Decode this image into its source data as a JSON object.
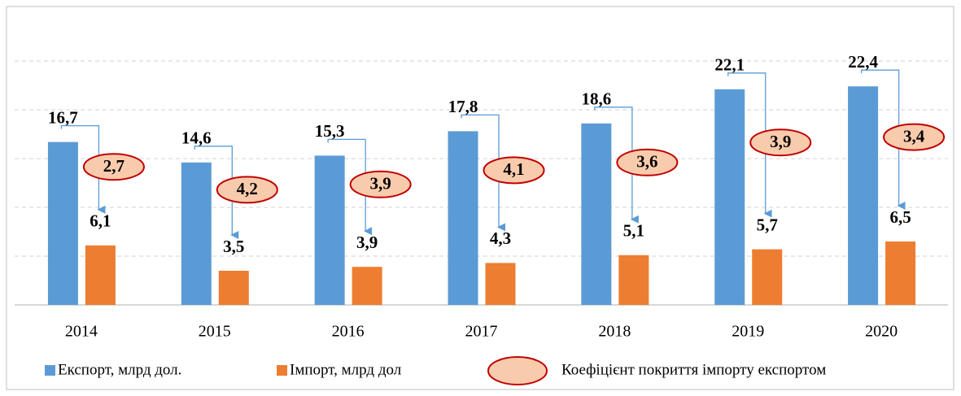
{
  "chart_data": {
    "type": "bar",
    "categories": [
      "2014",
      "2015",
      "2016",
      "2017",
      "2018",
      "2019",
      "2020"
    ],
    "series": [
      {
        "name": "Експорт, млрд дол.",
        "color": "#5b9bd5",
        "values": [
          16.7,
          14.6,
          15.3,
          17.8,
          18.6,
          22.1,
          22.4
        ],
        "value_labels": [
          "16,7",
          "14,6",
          "15,3",
          "17,8",
          "18,6",
          "22,1",
          "22,4"
        ]
      },
      {
        "name": "Імпорт, млрд дол",
        "color": "#ed7d31",
        "values": [
          6.1,
          3.5,
          3.9,
          4.3,
          5.1,
          5.7,
          6.5
        ],
        "value_labels": [
          "6,1",
          "3,5",
          "3,9",
          "4,3",
          "5,1",
          "5,7",
          "6,5"
        ]
      },
      {
        "name": "Коефіцієнт покриття імпорту експортом",
        "color": "#f8cbad",
        "values": [
          2.7,
          4.2,
          3.9,
          4.1,
          3.6,
          3.9,
          3.4
        ],
        "value_labels": [
          "2,7",
          "4,2",
          "3,9",
          "4,1",
          "3,6",
          "3,9",
          "3,4"
        ]
      }
    ],
    "ylim": [
      0,
      25
    ],
    "yticks": [
      0,
      5,
      10,
      15,
      20,
      25
    ],
    "grid": true
  }
}
